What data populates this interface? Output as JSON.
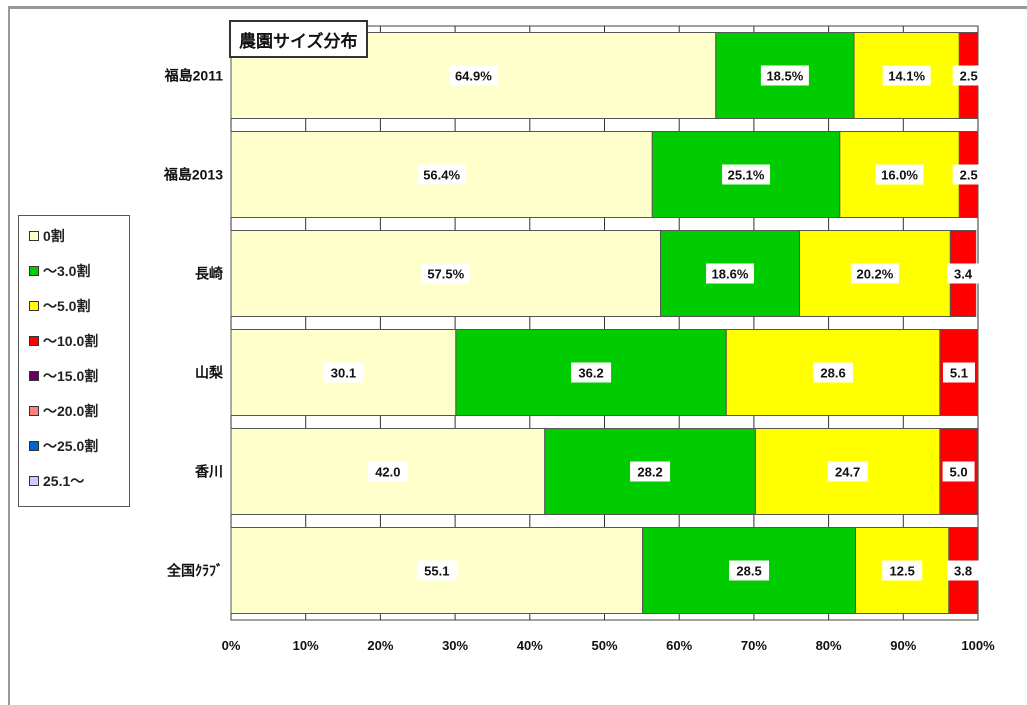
{
  "chart_data": {
    "type": "bar",
    "orientation": "horizontal",
    "stacked": "percent",
    "title": "農園サイズ分布",
    "categories": [
      "福島2011",
      "福島2013",
      "長崎",
      "山梨",
      "香川",
      "全国ｸﾗﾌﾞ"
    ],
    "series": [
      {
        "name": "0割",
        "color": "#ffffcc",
        "values": [
          64.9,
          56.4,
          57.5,
          30.1,
          42.0,
          55.1
        ],
        "labels": [
          "64.9%",
          "56.4%",
          "57.5%",
          "30.1",
          "42.0",
          "55.1"
        ]
      },
      {
        "name": "～3.0割",
        "color": "#00cc00",
        "values": [
          18.5,
          25.1,
          18.6,
          36.2,
          28.2,
          28.5
        ],
        "labels": [
          "18.5%",
          "25.1%",
          "18.6%",
          "36.2",
          "28.2",
          "28.5"
        ]
      },
      {
        "name": "～5.0割",
        "color": "#ffff00",
        "values": [
          14.1,
          16.0,
          20.2,
          28.6,
          24.7,
          12.5
        ],
        "labels": [
          "14.1%",
          "16.0%",
          "20.2%",
          "28.6",
          "24.7",
          "12.5"
        ]
      },
      {
        "name": "～10.0割",
        "color": "#ff0000",
        "values": [
          2.5,
          2.5,
          3.4,
          5.1,
          5.0,
          3.8
        ],
        "labels": [
          "2.5",
          "2.5",
          "3.4",
          "5.1",
          "5.0",
          "3.8"
        ]
      },
      {
        "name": "～15.0割",
        "color": "#660066",
        "values": [
          0,
          0,
          0,
          0,
          0,
          0
        ],
        "labels": []
      },
      {
        "name": "～20.0割",
        "color": "#ff8080",
        "values": [
          0,
          0,
          0,
          0,
          0,
          0
        ],
        "labels": []
      },
      {
        "name": "～25.0割",
        "color": "#0066cc",
        "values": [
          0,
          0,
          0,
          0,
          0,
          0
        ],
        "labels": []
      },
      {
        "name": "25.1～",
        "color": "#ccccff",
        "values": [
          0,
          0,
          0,
          0,
          0,
          0
        ],
        "labels": []
      }
    ],
    "x_ticks": [
      "0%",
      "10%",
      "20%",
      "30%",
      "40%",
      "50%",
      "60%",
      "70%",
      "80%",
      "90%",
      "100%"
    ],
    "xlim": [
      0,
      100
    ],
    "grid": "vertical",
    "legend_position": "left"
  }
}
